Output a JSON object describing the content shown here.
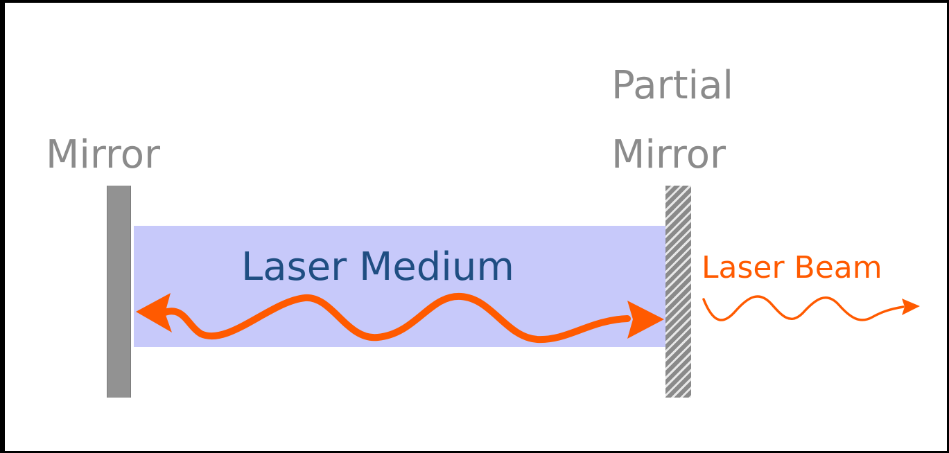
{
  "labels": {
    "mirror": "Mirror",
    "partial_mirror_line1": "Partial",
    "partial_mirror_line2": "Mirror",
    "medium": "Laser Medium",
    "beam": "Laser Beam"
  },
  "colors": {
    "frame": "#000000",
    "mirror": "#929292",
    "medium": "#c7c9fa",
    "medium_text": "#1f4e82",
    "mirror_text": "#8b8b8b",
    "beam": "#ff5a00"
  },
  "icons": {
    "internal_wave": "double-headed-wavy-arrow",
    "output_wave": "wavy-arrow-right"
  }
}
